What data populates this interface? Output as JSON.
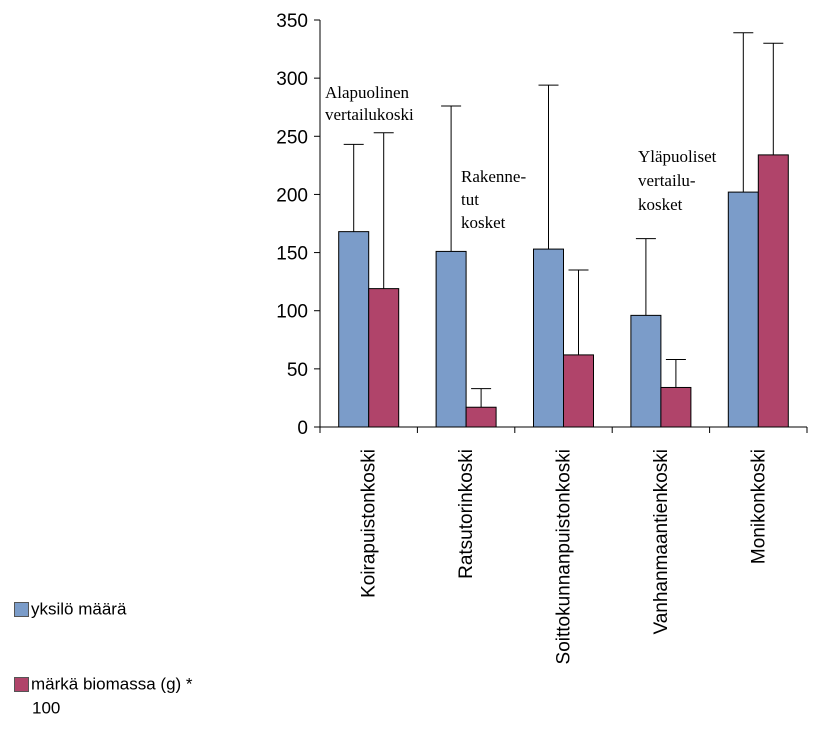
{
  "chart_data": {
    "type": "bar",
    "categories": [
      "Koirapuistonkoski",
      "Ratsutorinkoski",
      "Soittokunnanpuistonkoski",
      "Vanhanmaantienkoski",
      "Monikonkoski"
    ],
    "series": [
      {
        "name": "yksilö määrä",
        "color": "#7b9cc9",
        "values": [
          168,
          151,
          153,
          96,
          202
        ],
        "error_upper": [
          243,
          276,
          294,
          162,
          339
        ]
      },
      {
        "name": "märkä biomassa (g) * 100",
        "color": "#b0446a",
        "values": [
          119,
          17,
          62,
          34,
          234
        ],
        "error_upper": [
          253,
          33,
          135,
          58,
          330
        ]
      }
    ],
    "ylim": [
      0,
      350
    ],
    "yticks": [
      "0",
      "50",
      "100",
      "150",
      "200",
      "250",
      "300",
      "350"
    ],
    "xlabel": "",
    "ylabel": "",
    "grid": false,
    "legend": {
      "placement": "bottom-left",
      "entries": [
        "yksilö määrä",
        "märkä biomassa (g) *",
        "100"
      ]
    },
    "annotations": [
      {
        "lines": [
          "Alapuolinen",
          "vertailukoski"
        ]
      },
      {
        "lines": [
          "Rakenne-",
          "tut",
          "kosket"
        ]
      },
      {
        "lines": [
          "Yläpuoliset",
          "vertailu-",
          "kosket"
        ]
      }
    ]
  }
}
